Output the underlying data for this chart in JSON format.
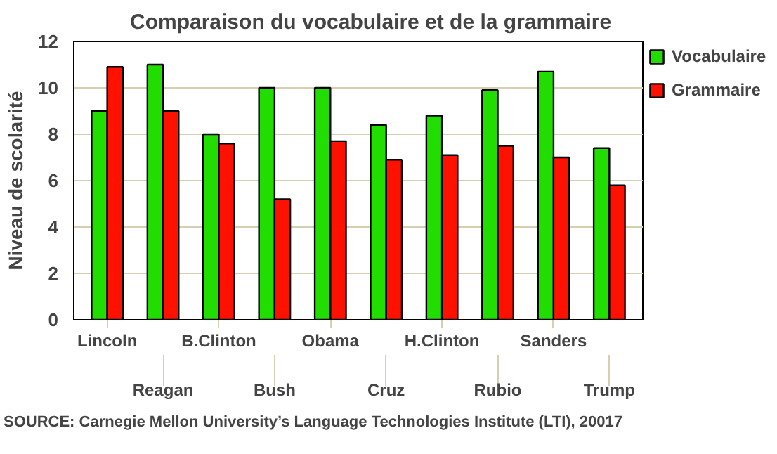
{
  "chart_data": {
    "type": "bar",
    "title": "Comparaison du vocabulaire et de la grammaire",
    "ylabel": "Niveau de scolarité",
    "categories": [
      "Lincoln",
      "Reagan",
      "B.Clinton",
      "Bush",
      "Obama",
      "Cruz",
      "H.Clinton",
      "Rubio",
      "Sanders",
      "Trump"
    ],
    "series": [
      {
        "name": "Vocabulaire",
        "color": "#22dd00",
        "values": [
          9.0,
          11.0,
          8.0,
          10.0,
          10.0,
          8.4,
          8.8,
          9.9,
          10.7,
          7.4
        ]
      },
      {
        "name": "Grammaire",
        "color": "#ff1100",
        "values": [
          10.9,
          9.0,
          7.6,
          5.2,
          7.7,
          6.9,
          7.1,
          7.5,
          7.0,
          5.8
        ]
      }
    ],
    "ylim": [
      0,
      12
    ],
    "yticks": [
      0,
      2,
      4,
      6,
      8,
      10,
      12
    ],
    "grid": "y",
    "legend": "right",
    "annotations": [
      "SOURCE: Carnegie Mellon University’s Language Technologies Institute (LTI), 20017"
    ]
  }
}
